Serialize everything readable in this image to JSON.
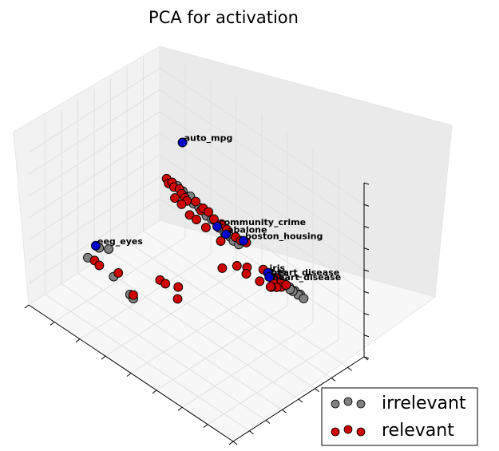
{
  "chart_data": {
    "type": "scatter",
    "projection": "3d",
    "title": "PCA for activation",
    "legend_position": "bottom-right",
    "grid": true,
    "colors": {
      "irrelevant": "#808080",
      "relevant": "#cc0000",
      "highlight": "#0000cc",
      "pane": "#f2f2f2",
      "grid": "#e0e0e0"
    },
    "series": [
      {
        "name": "irrelevant",
        "color": "#808080",
        "points": [
          {
            "x": 0.42,
            "y": 0.48,
            "z": 0.78
          },
          {
            "x": 0.44,
            "y": 0.49,
            "z": 0.76
          },
          {
            "x": 0.46,
            "y": 0.5,
            "z": 0.74
          },
          {
            "x": 0.48,
            "y": 0.51,
            "z": 0.71
          },
          {
            "x": 0.5,
            "y": 0.52,
            "z": 0.7
          },
          {
            "x": 0.47,
            "y": 0.5,
            "z": 0.75
          },
          {
            "x": 0.53,
            "y": 0.53,
            "z": 0.67
          },
          {
            "x": 0.55,
            "y": 0.54,
            "z": 0.66
          },
          {
            "x": 0.57,
            "y": 0.55,
            "z": 0.64
          },
          {
            "x": 0.58,
            "y": 0.55,
            "z": 0.63
          },
          {
            "x": 0.6,
            "y": 0.56,
            "z": 0.61
          },
          {
            "x": 0.62,
            "y": 0.57,
            "z": 0.6
          },
          {
            "x": 0.63,
            "y": 0.58,
            "z": 0.58
          },
          {
            "x": 0.65,
            "y": 0.59,
            "z": 0.57
          },
          {
            "x": 0.8,
            "y": 0.66,
            "z": 0.45
          },
          {
            "x": 0.82,
            "y": 0.67,
            "z": 0.44
          },
          {
            "x": 0.84,
            "y": 0.68,
            "z": 0.43
          },
          {
            "x": 0.86,
            "y": 0.69,
            "z": 0.42
          },
          {
            "x": 0.88,
            "y": 0.7,
            "z": 0.41
          },
          {
            "x": 0.87,
            "y": 0.7,
            "z": 0.4
          },
          {
            "x": 0.89,
            "y": 0.71,
            "z": 0.39
          },
          {
            "x": 0.85,
            "y": 0.69,
            "z": 0.41
          },
          {
            "x": 0.83,
            "y": 0.7,
            "z": 0.4
          },
          {
            "x": 0.81,
            "y": 0.68,
            "z": 0.43
          },
          {
            "x": 0.2,
            "y": 0.2,
            "z": 0.4
          },
          {
            "x": 0.21,
            "y": 0.21,
            "z": 0.39
          },
          {
            "x": 0.25,
            "y": 0.22,
            "z": 0.41
          },
          {
            "x": 0.18,
            "y": 0.17,
            "z": 0.33
          },
          {
            "x": 0.3,
            "y": 0.18,
            "z": 0.31
          },
          {
            "x": 0.38,
            "y": 0.18,
            "z": 0.27
          },
          {
            "x": 0.39,
            "y": 0.19,
            "z": 0.25
          }
        ]
      },
      {
        "name": "relevant",
        "color": "#cc0000",
        "points": [
          {
            "x": 0.38,
            "y": 0.46,
            "z": 0.8
          },
          {
            "x": 0.39,
            "y": 0.46,
            "z": 0.78
          },
          {
            "x": 0.4,
            "y": 0.47,
            "z": 0.79
          },
          {
            "x": 0.41,
            "y": 0.47,
            "z": 0.77
          },
          {
            "x": 0.43,
            "y": 0.48,
            "z": 0.77
          },
          {
            "x": 0.44,
            "y": 0.48,
            "z": 0.75
          },
          {
            "x": 0.45,
            "y": 0.49,
            "z": 0.73
          },
          {
            "x": 0.46,
            "y": 0.49,
            "z": 0.72
          },
          {
            "x": 0.49,
            "y": 0.51,
            "z": 0.73
          },
          {
            "x": 0.51,
            "y": 0.52,
            "z": 0.69
          },
          {
            "x": 0.52,
            "y": 0.52,
            "z": 0.71
          },
          {
            "x": 0.54,
            "y": 0.53,
            "z": 0.7
          },
          {
            "x": 0.56,
            "y": 0.54,
            "z": 0.67
          },
          {
            "x": 0.59,
            "y": 0.55,
            "z": 0.66
          },
          {
            "x": 0.61,
            "y": 0.56,
            "z": 0.64
          },
          {
            "x": 0.64,
            "y": 0.58,
            "z": 0.61
          },
          {
            "x": 0.66,
            "y": 0.59,
            "z": 0.6
          },
          {
            "x": 0.68,
            "y": 0.6,
            "z": 0.6
          },
          {
            "x": 0.42,
            "y": 0.46,
            "z": 0.72
          },
          {
            "x": 0.44,
            "y": 0.48,
            "z": 0.69
          },
          {
            "x": 0.48,
            "y": 0.48,
            "z": 0.66
          },
          {
            "x": 0.5,
            "y": 0.5,
            "z": 0.64
          },
          {
            "x": 0.54,
            "y": 0.51,
            "z": 0.62
          },
          {
            "x": 0.6,
            "y": 0.53,
            "z": 0.58
          },
          {
            "x": 0.75,
            "y": 0.62,
            "z": 0.49
          },
          {
            "x": 0.77,
            "y": 0.63,
            "z": 0.48
          },
          {
            "x": 0.79,
            "y": 0.65,
            "z": 0.46
          },
          {
            "x": 0.8,
            "y": 0.64,
            "z": 0.45
          },
          {
            "x": 0.81,
            "y": 0.66,
            "z": 0.44
          },
          {
            "x": 0.82,
            "y": 0.65,
            "z": 0.43
          },
          {
            "x": 0.83,
            "y": 0.67,
            "z": 0.44
          },
          {
            "x": 0.78,
            "y": 0.65,
            "z": 0.42
          },
          {
            "x": 0.79,
            "y": 0.66,
            "z": 0.4
          },
          {
            "x": 0.77,
            "y": 0.65,
            "z": 0.39
          },
          {
            "x": 0.76,
            "y": 0.66,
            "z": 0.38
          },
          {
            "x": 0.66,
            "y": 0.56,
            "z": 0.47
          },
          {
            "x": 0.69,
            "y": 0.59,
            "z": 0.47
          },
          {
            "x": 0.68,
            "y": 0.6,
            "z": 0.42
          },
          {
            "x": 0.72,
            "y": 0.64,
            "z": 0.39
          },
          {
            "x": 0.2,
            "y": 0.19,
            "z": 0.32
          },
          {
            "x": 0.23,
            "y": 0.18,
            "z": 0.32
          },
          {
            "x": 0.31,
            "y": 0.2,
            "z": 0.33
          },
          {
            "x": 0.39,
            "y": 0.19,
            "z": 0.27
          },
          {
            "x": 0.45,
            "y": 0.3,
            "z": 0.35
          },
          {
            "x": 0.47,
            "y": 0.31,
            "z": 0.34
          },
          {
            "x": 0.52,
            "y": 0.33,
            "z": 0.35
          },
          {
            "x": 0.53,
            "y": 0.31,
            "z": 0.3
          },
          {
            "x": 0.62,
            "y": 0.51,
            "z": 0.45
          }
        ]
      }
    ],
    "highlighted": [
      {
        "label": "auto_mpg",
        "x": 0.4,
        "y": 0.55,
        "z": 0.98
      },
      {
        "label": "community_crime",
        "x": 0.57,
        "y": 0.55,
        "z": 0.63
      },
      {
        "label": "abalone",
        "x": 0.6,
        "y": 0.57,
        "z": 0.6
      },
      {
        "label": "boston_housing",
        "x": 0.66,
        "y": 0.61,
        "z": 0.59
      },
      {
        "label": "iris",
        "x": 0.76,
        "y": 0.64,
        "z": 0.47
      },
      {
        "label": "heart_disease",
        "x": 0.76,
        "y": 0.65,
        "z": 0.44
      },
      {
        "label": "eeg_eyes",
        "x": 0.2,
        "y": 0.2,
        "z": 0.4
      }
    ],
    "overlap_labels": [
      {
        "text": "iris",
        "x": 0.76,
        "y": 0.64,
        "z": 0.47
      },
      {
        "text": "heart_disease",
        "x": 0.76,
        "y": 0.65,
        "z": 0.44
      }
    ]
  }
}
